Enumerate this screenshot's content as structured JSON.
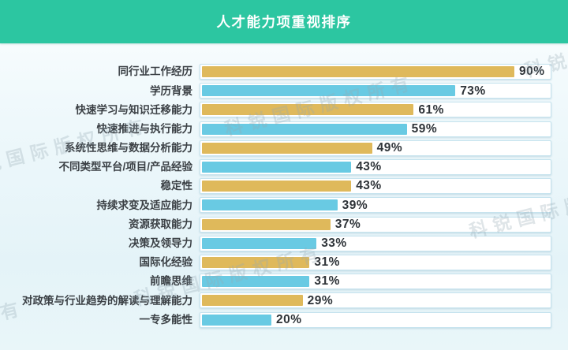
{
  "header": {
    "title": "人才能力项重视排序"
  },
  "watermark": {
    "text": "科锐国际版权所有"
  },
  "colors": {
    "header_bg": "#2cc6a1",
    "title_text": "#ffffff",
    "gold": "#dfb95b",
    "blue": "#69cae3",
    "track_bg": "#ffffff",
    "track_border": "#c6e3ee",
    "label_text": "#3b4045",
    "value_text": "#2e3338"
  },
  "chart_data": {
    "type": "bar",
    "orientation": "horizontal",
    "title": "人才能力项重视排序",
    "unit": "%",
    "xlim": [
      0,
      100
    ],
    "grid": false,
    "legend": false,
    "value_labels": "outside-end-of-bar",
    "categories": [
      "同行业工作经历",
      "学历背景",
      "快速学习与知识迁移能力",
      "快速推进与执行能力",
      "系统性思维与数据分析能力",
      "不同类型平台/项目/产品经验",
      "稳定性",
      "持续求变及适应能力",
      "资源获取能力",
      "决策及领导力",
      "国际化经验",
      "前瞻思维",
      "对政策与行业趋势的解读与理解能力",
      "一专多能性"
    ],
    "values": [
      90,
      73,
      61,
      59,
      49,
      43,
      43,
      39,
      37,
      33,
      31,
      31,
      29,
      20
    ],
    "bar_colors": [
      "gold",
      "blue",
      "gold",
      "blue",
      "gold",
      "blue",
      "gold",
      "blue",
      "gold",
      "blue",
      "gold",
      "blue",
      "gold",
      "blue"
    ]
  }
}
